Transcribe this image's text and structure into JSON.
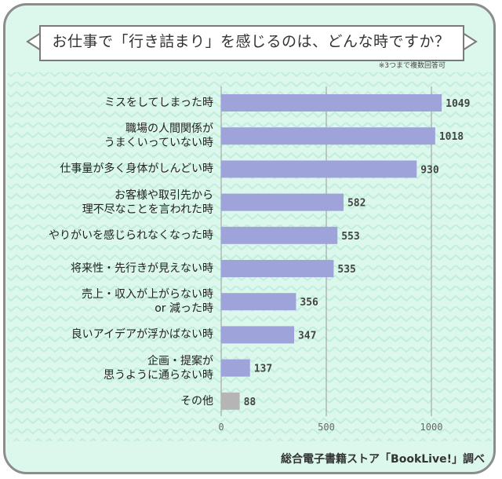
{
  "title": "お仕事で「行き詰まり」を感じるのは、どんな時ですか？",
  "note": "※3つまで複数回答可",
  "source": "総合電子書籍ストア「BookLive!」調べ",
  "colors": {
    "bar": "#9ea3d9",
    "other_bar": "#b5b5b5",
    "background": "#dcf7ec",
    "grid": "#9a9a9a"
  },
  "chart_data": {
    "type": "bar",
    "orientation": "horizontal",
    "categories": [
      "ミスをしてしまった時",
      "職場の人間関係が\nうまくいっていない時",
      "仕事量が多く身体がしんどい時",
      "お客様や取引先から\n理不尽なことを言われた時",
      "やりがいを感じられなくなった時",
      "将来性・先行きが見えない時",
      "売上・収入が上がらない時\nor 減った時",
      "良いアイデアが浮かばない時",
      "企画・提案が\n思うように通らない時",
      "その他"
    ],
    "values": [
      1049,
      1018,
      930,
      582,
      553,
      535,
      356,
      347,
      137,
      88
    ],
    "xlim": [
      0,
      1100
    ],
    "xticks": [
      0,
      500,
      1000
    ],
    "grid": true
  }
}
